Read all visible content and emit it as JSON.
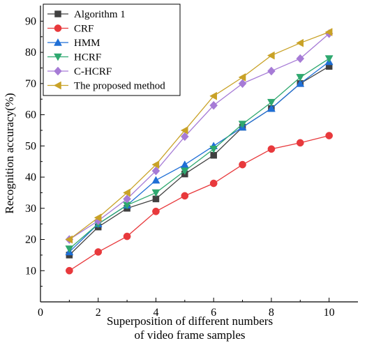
{
  "chart_data": {
    "type": "line",
    "title": "",
    "xlabel": [
      "Superposition of different numbers",
      "of video frame samples"
    ],
    "ylabel": "Recognition accuracy(%)",
    "xlim": [
      0,
      11
    ],
    "ylim": [
      0,
      95
    ],
    "xticks": [
      0,
      2,
      4,
      6,
      8,
      10
    ],
    "yticks": [
      10,
      20,
      30,
      40,
      50,
      60,
      70,
      80,
      90
    ],
    "grid": false,
    "legend_position": "top-left",
    "x": [
      1,
      2,
      3,
      4,
      5,
      6,
      7,
      8,
      9,
      10
    ],
    "series": [
      {
        "name": "Algorithm 1",
        "color": "#404040",
        "marker": "square",
        "values": [
          15,
          24,
          30,
          33,
          41,
          47,
          56,
          62,
          70,
          75.5
        ]
      },
      {
        "name": "CRF",
        "color": "#e8393c",
        "marker": "circle",
        "values": [
          10,
          16,
          21,
          29,
          34,
          38,
          44,
          49,
          51,
          53.3
        ]
      },
      {
        "name": "HMM",
        "color": "#1f6fd6",
        "marker": "triangle-up",
        "values": [
          16,
          25,
          31,
          39,
          44,
          50,
          56,
          62,
          70,
          77
        ]
      },
      {
        "name": "HCRF",
        "color": "#2ea86f",
        "marker": "triangle-down",
        "values": [
          17,
          25,
          31,
          35,
          42,
          49,
          57,
          64,
          72,
          78
        ]
      },
      {
        "name": "C-HCRF",
        "color": "#a67bd6",
        "marker": "diamond",
        "values": [
          20,
          26,
          33,
          42,
          53,
          63,
          70,
          74,
          78,
          86
        ]
      },
      {
        "name": "The proposed method",
        "color": "#c9a227",
        "marker": "triangle-left",
        "values": [
          20,
          27,
          35,
          44,
          55,
          66,
          72,
          79,
          83,
          86.5
        ]
      }
    ]
  }
}
